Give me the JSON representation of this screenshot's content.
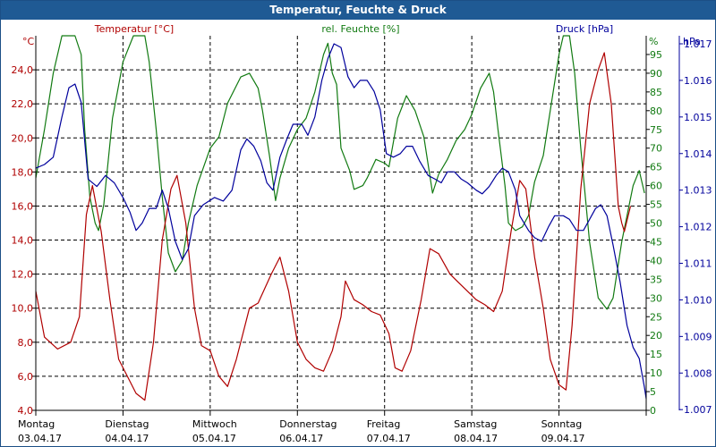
{
  "window_title": "Temperatur, Feuchte & Druck",
  "colors": {
    "titlebar": "#1f5a94",
    "temperature": "#b00000",
    "humidity": "#117a11",
    "pressure": "#00009c",
    "grid": "#000000"
  },
  "chart_data": {
    "type": "line",
    "x_categories": [
      {
        "day": "Montag",
        "date": "03.04.17"
      },
      {
        "day": "Dienstag",
        "date": "04.04.17"
      },
      {
        "day": "Mittwoch",
        "date": "05.04.17"
      },
      {
        "day": "Donnerstag",
        "date": "06.04.17"
      },
      {
        "day": "Freitag",
        "date": "07.04.17"
      },
      {
        "day": "Samstag",
        "date": "08.04.17"
      },
      {
        "day": "Sonntag",
        "date": "09.04.17"
      }
    ],
    "x_range_days": [
      0,
      7
    ],
    "series": [
      {
        "name": "Temperatur [°C]",
        "unit_label": "°C",
        "axis": "left",
        "color": "#b00000",
        "ylim": [
          4.0,
          26.0
        ],
        "ticks": [
          "4,0",
          "6,0",
          "8,0",
          "10,0",
          "12,0",
          "14,0",
          "16,0",
          "18,0",
          "20,0",
          "22,0",
          "24,0"
        ],
        "tick_values": [
          4,
          6,
          8,
          10,
          12,
          14,
          16,
          18,
          20,
          22,
          24
        ],
        "points": [
          [
            0,
            11.0
          ],
          [
            0.1,
            8.3
          ],
          [
            0.25,
            7.6
          ],
          [
            0.4,
            8.0
          ],
          [
            0.5,
            9.5
          ],
          [
            0.58,
            15.5
          ],
          [
            0.65,
            17.2
          ],
          [
            0.75,
            14.5
          ],
          [
            0.85,
            10.5
          ],
          [
            0.95,
            7.0
          ],
          [
            1.05,
            6.0
          ],
          [
            1.15,
            5.0
          ],
          [
            1.25,
            4.6
          ],
          [
            1.35,
            8.0
          ],
          [
            1.45,
            14.0
          ],
          [
            1.55,
            17.0
          ],
          [
            1.62,
            17.8
          ],
          [
            1.72,
            15.0
          ],
          [
            1.82,
            10.0
          ],
          [
            1.9,
            7.8
          ],
          [
            2.0,
            7.5
          ],
          [
            2.1,
            6.0
          ],
          [
            2.2,
            5.4
          ],
          [
            2.3,
            7.0
          ],
          [
            2.45,
            10.0
          ],
          [
            2.55,
            10.3
          ],
          [
            2.7,
            12.0
          ],
          [
            2.8,
            13.0
          ],
          [
            2.9,
            11.0
          ],
          [
            3.0,
            8.0
          ],
          [
            3.1,
            7.0
          ],
          [
            3.2,
            6.5
          ],
          [
            3.3,
            6.3
          ],
          [
            3.4,
            7.5
          ],
          [
            3.5,
            9.5
          ],
          [
            3.55,
            11.6
          ],
          [
            3.65,
            10.5
          ],
          [
            3.75,
            10.2
          ],
          [
            3.85,
            9.8
          ],
          [
            3.95,
            9.6
          ],
          [
            4.05,
            8.5
          ],
          [
            4.12,
            6.5
          ],
          [
            4.2,
            6.3
          ],
          [
            4.3,
            7.5
          ],
          [
            4.42,
            10.5
          ],
          [
            4.52,
            13.5
          ],
          [
            4.62,
            13.2
          ],
          [
            4.75,
            12.0
          ],
          [
            4.85,
            11.5
          ],
          [
            4.95,
            11.0
          ],
          [
            5.05,
            10.5
          ],
          [
            5.15,
            10.2
          ],
          [
            5.25,
            9.8
          ],
          [
            5.35,
            11.0
          ],
          [
            5.45,
            14.5
          ],
          [
            5.55,
            17.5
          ],
          [
            5.62,
            17.0
          ],
          [
            5.72,
            13.0
          ],
          [
            5.82,
            10.0
          ],
          [
            5.9,
            7.0
          ],
          [
            6.0,
            5.5
          ],
          [
            6.08,
            5.2
          ],
          [
            6.15,
            9.0
          ],
          [
            6.25,
            17.0
          ],
          [
            6.35,
            22.0
          ],
          [
            6.45,
            24.0
          ],
          [
            6.52,
            25.0
          ],
          [
            6.6,
            22.0
          ],
          [
            6.68,
            16.0
          ],
          [
            6.72,
            15.0
          ],
          [
            6.75,
            14.5
          ],
          [
            6.82,
            16.0
          ]
        ]
      },
      {
        "name": "rel. Feuchte [%]",
        "unit_label": "%",
        "axis": "right",
        "color": "#117a11",
        "ylim": [
          0,
          100
        ],
        "ticks": [
          "0",
          "5",
          "10",
          "15",
          "20",
          "25",
          "30",
          "35",
          "40",
          "45",
          "50",
          "55",
          "60",
          "65",
          "70",
          "75",
          "80",
          "85",
          "90",
          "95"
        ],
        "tick_values": [
          0,
          5,
          10,
          15,
          20,
          25,
          30,
          35,
          40,
          45,
          50,
          55,
          60,
          65,
          70,
          75,
          80,
          85,
          90,
          95
        ],
        "points": [
          [
            0,
            62
          ],
          [
            0.1,
            75
          ],
          [
            0.2,
            90
          ],
          [
            0.3,
            100
          ],
          [
            0.45,
            100
          ],
          [
            0.52,
            95
          ],
          [
            0.56,
            75
          ],
          [
            0.62,
            57
          ],
          [
            0.68,
            50
          ],
          [
            0.72,
            48
          ],
          [
            0.78,
            55
          ],
          [
            0.88,
            78
          ],
          [
            1.0,
            93
          ],
          [
            1.12,
            100
          ],
          [
            1.25,
            100
          ],
          [
            1.3,
            93
          ],
          [
            1.38,
            75
          ],
          [
            1.45,
            57
          ],
          [
            1.52,
            42
          ],
          [
            1.6,
            37
          ],
          [
            1.68,
            40
          ],
          [
            1.75,
            50
          ],
          [
            1.85,
            60
          ],
          [
            2.0,
            70
          ],
          [
            2.1,
            73
          ],
          [
            2.2,
            82
          ],
          [
            2.35,
            89
          ],
          [
            2.45,
            90
          ],
          [
            2.55,
            86
          ],
          [
            2.6,
            80
          ],
          [
            2.68,
            68
          ],
          [
            2.75,
            56
          ],
          [
            2.8,
            62
          ],
          [
            2.9,
            70
          ],
          [
            3.0,
            75
          ],
          [
            3.1,
            78
          ],
          [
            3.2,
            85
          ],
          [
            3.3,
            95
          ],
          [
            3.35,
            98
          ],
          [
            3.4,
            90
          ],
          [
            3.45,
            87
          ],
          [
            3.5,
            70
          ],
          [
            3.6,
            64
          ],
          [
            3.65,
            59
          ],
          [
            3.75,
            60
          ],
          [
            3.8,
            62
          ],
          [
            3.9,
            67
          ],
          [
            4.0,
            66
          ],
          [
            4.05,
            65
          ],
          [
            4.15,
            78
          ],
          [
            4.25,
            84
          ],
          [
            4.35,
            80
          ],
          [
            4.45,
            73
          ],
          [
            4.55,
            58
          ],
          [
            4.62,
            63
          ],
          [
            4.72,
            67
          ],
          [
            4.82,
            72
          ],
          [
            4.92,
            75
          ],
          [
            5.0,
            79
          ],
          [
            5.1,
            86
          ],
          [
            5.2,
            90
          ],
          [
            5.25,
            85
          ],
          [
            5.3,
            75
          ],
          [
            5.38,
            60
          ],
          [
            5.42,
            50
          ],
          [
            5.5,
            48
          ],
          [
            5.58,
            49
          ],
          [
            5.65,
            52
          ],
          [
            5.72,
            61
          ],
          [
            5.82,
            68
          ],
          [
            5.9,
            80
          ],
          [
            6.0,
            95
          ],
          [
            6.05,
            100
          ],
          [
            6.12,
            100
          ],
          [
            6.18,
            90
          ],
          [
            6.25,
            70
          ],
          [
            6.35,
            45
          ],
          [
            6.45,
            30
          ],
          [
            6.55,
            27
          ],
          [
            6.62,
            30
          ],
          [
            6.72,
            45
          ],
          [
            6.78,
            52
          ],
          [
            6.85,
            60
          ],
          [
            6.92,
            64
          ],
          [
            6.98,
            58
          ]
        ]
      },
      {
        "name": "Druck [hPa]",
        "unit_label": "hPa",
        "axis": "right2",
        "color": "#00009c",
        "ylim": [
          1006.98,
          1017.22
        ],
        "ticks": [
          "1.007",
          "1.008",
          "1.009",
          "1.010",
          "1.011",
          "1.012",
          "1.013",
          "1.014",
          "1.015",
          "1.016",
          "1.017"
        ],
        "tick_values": [
          1007,
          1008,
          1009,
          1010,
          1011,
          1012,
          1013,
          1014,
          1015,
          1016,
          1017
        ],
        "points": [
          [
            0,
            1013.6
          ],
          [
            0.1,
            1013.7
          ],
          [
            0.2,
            1013.9
          ],
          [
            0.3,
            1015.0
          ],
          [
            0.38,
            1015.8
          ],
          [
            0.45,
            1015.9
          ],
          [
            0.52,
            1015.4
          ],
          [
            0.6,
            1013.3
          ],
          [
            0.7,
            1013.1
          ],
          [
            0.8,
            1013.4
          ],
          [
            0.9,
            1013.2
          ],
          [
            1.0,
            1012.8
          ],
          [
            1.08,
            1012.4
          ],
          [
            1.15,
            1011.9
          ],
          [
            1.22,
            1012.1
          ],
          [
            1.3,
            1012.5
          ],
          [
            1.38,
            1012.5
          ],
          [
            1.45,
            1013.0
          ],
          [
            1.52,
            1012.5
          ],
          [
            1.6,
            1011.6
          ],
          [
            1.68,
            1011.1
          ],
          [
            1.75,
            1011.4
          ],
          [
            1.82,
            1012.3
          ],
          [
            1.92,
            1012.6
          ],
          [
            2.05,
            1012.8
          ],
          [
            2.15,
            1012.7
          ],
          [
            2.25,
            1013.0
          ],
          [
            2.35,
            1014.1
          ],
          [
            2.42,
            1014.4
          ],
          [
            2.5,
            1014.2
          ],
          [
            2.58,
            1013.8
          ],
          [
            2.65,
            1013.2
          ],
          [
            2.72,
            1013.0
          ],
          [
            2.8,
            1013.9
          ],
          [
            2.88,
            1014.4
          ],
          [
            2.95,
            1014.8
          ],
          [
            3.05,
            1014.8
          ],
          [
            3.12,
            1014.5
          ],
          [
            3.2,
            1015.0
          ],
          [
            3.28,
            1016.0
          ],
          [
            3.35,
            1016.6
          ],
          [
            3.42,
            1017.0
          ],
          [
            3.5,
            1016.9
          ],
          [
            3.58,
            1016.1
          ],
          [
            3.65,
            1015.8
          ],
          [
            3.72,
            1016.0
          ],
          [
            3.8,
            1016.0
          ],
          [
            3.88,
            1015.7
          ],
          [
            3.95,
            1015.2
          ],
          [
            4.02,
            1014.0
          ],
          [
            4.1,
            1013.9
          ],
          [
            4.18,
            1014.0
          ],
          [
            4.25,
            1014.2
          ],
          [
            4.32,
            1014.2
          ],
          [
            4.4,
            1013.8
          ],
          [
            4.5,
            1013.4
          ],
          [
            4.58,
            1013.3
          ],
          [
            4.65,
            1013.2
          ],
          [
            4.72,
            1013.5
          ],
          [
            4.8,
            1013.5
          ],
          [
            4.88,
            1013.3
          ],
          [
            4.95,
            1013.2
          ],
          [
            5.05,
            1013.0
          ],
          [
            5.12,
            1012.9
          ],
          [
            5.2,
            1013.1
          ],
          [
            5.28,
            1013.4
          ],
          [
            5.35,
            1013.6
          ],
          [
            5.42,
            1013.5
          ],
          [
            5.5,
            1013.0
          ],
          [
            5.55,
            1012.3
          ],
          [
            5.65,
            1011.9
          ],
          [
            5.72,
            1011.7
          ],
          [
            5.8,
            1011.6
          ],
          [
            5.88,
            1012.0
          ],
          [
            5.95,
            1012.3
          ],
          [
            6.05,
            1012.3
          ],
          [
            6.12,
            1012.2
          ],
          [
            6.2,
            1011.9
          ],
          [
            6.28,
            1011.9
          ],
          [
            6.35,
            1012.2
          ],
          [
            6.42,
            1012.5
          ],
          [
            6.48,
            1012.6
          ],
          [
            6.55,
            1012.3
          ],
          [
            6.62,
            1011.5
          ],
          [
            6.7,
            1010.5
          ],
          [
            6.78,
            1009.3
          ],
          [
            6.85,
            1008.7
          ],
          [
            6.92,
            1008.4
          ],
          [
            6.98,
            1007.6
          ],
          [
            7.0,
            1007.3
          ]
        ]
      }
    ]
  }
}
